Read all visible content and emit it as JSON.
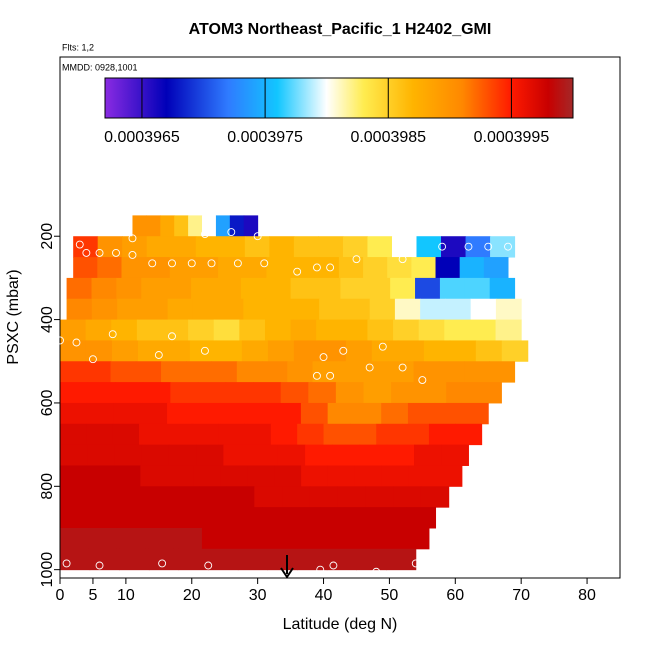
{
  "chart_data": {
    "type": "heatmap",
    "title": "ATOM3 Northeast_Pacific_1 H2402_GMI",
    "flights_label": "Flts: 1,2",
    "dates_label": "MMDD: 0928,1001",
    "xlabel": "Latitude (deg N)",
    "ylabel": "PSXC (mbar)",
    "xlim": [
      0,
      85
    ],
    "xticks": [
      0,
      5,
      10,
      20,
      30,
      40,
      50,
      60,
      70,
      80
    ],
    "ylim": [
      1020,
      -230
    ],
    "yticks": [
      200,
      400,
      600,
      800,
      1000
    ],
    "clim": [
      0.0003962,
      0.0004
    ],
    "cticks": [
      0.0003965,
      0.0003975,
      0.0003985,
      0.0003995
    ],
    "colorscale": [
      [
        0.0003962,
        "#8a2be2"
      ],
      [
        0.0003967,
        "#0000b8"
      ],
      [
        0.0003972,
        "#2f7bff"
      ],
      [
        0.0003976,
        "#12c6ff"
      ],
      [
        0.000398,
        "#ffffff"
      ],
      [
        0.0003983,
        "#ffec50"
      ],
      [
        0.0003987,
        "#ffb400"
      ],
      [
        0.0003991,
        "#ff8800"
      ],
      [
        0.0003995,
        "#ff1a00"
      ],
      [
        0.0003998,
        "#c80000"
      ],
      [
        0.0004,
        "#a42828"
      ]
    ],
    "rows": [
      {
        "pressure": 175,
        "lat_range": [
          11,
          30
        ],
        "values": [
          0.000399,
          0.000399,
          0.0003988,
          0.0003986,
          0.0003982,
          0.000398,
          0.0003974,
          0.0003968,
          0.0003966
        ]
      },
      {
        "pressure": 225,
        "lat_range": [
          2,
          69
        ],
        "values": [
          0.0003994,
          0.000399,
          0.0003989,
          0.0003988,
          0.0003988,
          0.0003987,
          0.0003987,
          0.0003986,
          0.0003987,
          0.0003986,
          0.0003986,
          0.0003985,
          0.0003983,
          0.000398,
          0.0003976,
          0.0003966,
          0.0003972,
          0.0003978
        ]
      },
      {
        "pressure": 275,
        "lat_range": [
          2,
          68
        ],
        "values": [
          0.0003993,
          0.0003992,
          0.000399,
          0.000399,
          0.0003989,
          0.0003989,
          0.0003988,
          0.0003988,
          0.0003987,
          0.0003987,
          0.0003987,
          0.0003986,
          0.0003985,
          0.0003984,
          0.0003983,
          0.0003967,
          0.0003975,
          0.0003974
        ]
      },
      {
        "pressure": 325,
        "lat_range": [
          1,
          69
        ],
        "values": [
          0.0003992,
          0.0003991,
          0.000399,
          0.0003989,
          0.0003989,
          0.0003988,
          0.0003988,
          0.0003987,
          0.0003987,
          0.0003986,
          0.0003986,
          0.0003985,
          0.0003985,
          0.0003983,
          0.000397,
          0.0003977,
          0.0003977,
          0.0003975
        ]
      },
      {
        "pressure": 375,
        "lat_range": [
          1,
          70
        ],
        "values": [
          0.0003991,
          0.000399,
          0.0003989,
          0.0003989,
          0.0003988,
          0.0003988,
          0.0003988,
          0.0003987,
          0.0003987,
          0.0003987,
          0.0003986,
          0.0003986,
          0.0003985,
          0.0003981,
          0.0003979,
          0.0003979,
          0.000398,
          0.0003981
        ]
      },
      {
        "pressure": 425,
        "lat_range": [
          0,
          70
        ],
        "values": [
          0.0003989,
          0.0003988,
          0.0003987,
          0.0003986,
          0.0003986,
          0.0003985,
          0.0003984,
          0.0003986,
          0.0003987,
          0.0003988,
          0.0003987,
          0.0003987,
          0.0003986,
          0.0003985,
          0.0003984,
          0.0003983,
          0.0003983,
          0.0003982
        ]
      },
      {
        "pressure": 475,
        "lat_range": [
          0,
          71
        ],
        "values": [
          0.000399,
          0.000399,
          0.0003989,
          0.0003988,
          0.0003988,
          0.0003987,
          0.0003987,
          0.0003988,
          0.0003989,
          0.000399,
          0.000399,
          0.0003989,
          0.0003988,
          0.0003988,
          0.0003987,
          0.0003987,
          0.0003986,
          0.0003985
        ]
      },
      {
        "pressure": 525,
        "lat_range": [
          0,
          69
        ],
        "values": [
          0.0003994,
          0.0003994,
          0.0003993,
          0.0003993,
          0.0003992,
          0.0003992,
          0.0003992,
          0.0003991,
          0.0003991,
          0.000399,
          0.0003989,
          0.0003989,
          0.0003989,
          0.0003989,
          0.000399,
          0.000399,
          0.000399,
          0.000399
        ]
      },
      {
        "pressure": 575,
        "lat_range": [
          0,
          67
        ],
        "values": [
          0.0003995,
          0.0003995,
          0.0003995,
          0.0003995,
          0.0003994,
          0.0003994,
          0.0003994,
          0.0003994,
          0.0003993,
          0.0003992,
          0.000399,
          0.0003989,
          0.000399,
          0.000399,
          0.0003991,
          0.0003991
        ]
      },
      {
        "pressure": 625,
        "lat_range": [
          0,
          65
        ],
        "values": [
          0.0003996,
          0.0003996,
          0.0003996,
          0.0003996,
          0.0003995,
          0.0003995,
          0.0003995,
          0.0003995,
          0.0003995,
          0.0003993,
          0.0003991,
          0.0003991,
          0.0003992,
          0.0003993,
          0.0003993,
          0.0003993
        ]
      },
      {
        "pressure": 675,
        "lat_range": [
          0,
          64
        ],
        "values": [
          0.0003997,
          0.0003997,
          0.0003997,
          0.0003996,
          0.0003996,
          0.0003996,
          0.0003996,
          0.0003996,
          0.0003995,
          0.0003994,
          0.0003993,
          0.0003993,
          0.0003994,
          0.0003994,
          0.0003995,
          0.0003995
        ]
      },
      {
        "pressure": 725,
        "lat_range": [
          0,
          62
        ],
        "values": [
          0.0003997,
          0.0003997,
          0.0003997,
          0.0003997,
          0.0003997,
          0.0003997,
          0.0003996,
          0.0003996,
          0.0003996,
          0.0003995,
          0.0003995,
          0.0003995,
          0.0003995,
          0.0003996,
          0.0003996
        ]
      },
      {
        "pressure": 775,
        "lat_range": [
          0,
          61
        ],
        "values": [
          0.0003998,
          0.0003998,
          0.0003998,
          0.0003997,
          0.0003997,
          0.0003997,
          0.0003997,
          0.0003997,
          0.0003997,
          0.0003996,
          0.0003996,
          0.0003996,
          0.0003996,
          0.0003996,
          0.0003996
        ]
      },
      {
        "pressure": 825,
        "lat_range": [
          0,
          59
        ],
        "values": [
          0.0003998,
          0.0003998,
          0.0003998,
          0.0003998,
          0.0003998,
          0.0003998,
          0.0003998,
          0.0003997,
          0.0003997,
          0.0003997,
          0.0003997,
          0.0003997,
          0.0003997,
          0.0003997
        ]
      },
      {
        "pressure": 875,
        "lat_range": [
          0,
          57
        ],
        "values": [
          0.0003998,
          0.0003998,
          0.0003998,
          0.0003998,
          0.0003998,
          0.0003998,
          0.0003998,
          0.0003998,
          0.0003998,
          0.0003998,
          0.0003998,
          0.0003998,
          0.0003998
        ]
      },
      {
        "pressure": 925,
        "lat_range": [
          0,
          56
        ],
        "values": [
          0.0003999,
          0.0003999,
          0.0003999,
          0.0003999,
          0.0003999,
          0.0003998,
          0.0003998,
          0.0003998,
          0.0003998,
          0.0003998,
          0.0003998,
          0.0003998,
          0.0003998
        ]
      },
      {
        "pressure": 975,
        "lat_range": [
          0,
          54
        ],
        "values": [
          0.0003999,
          0.0003999,
          0.0003999,
          0.0003999,
          0.0003999,
          0.0003999,
          0.0003999,
          0.0003999,
          0.0003999,
          0.0003999,
          0.0003999,
          0.0003999
        ]
      }
    ],
    "points": {
      "lat": [
        11,
        22,
        26,
        30,
        3,
        4,
        6,
        8.5,
        11,
        14,
        17,
        20,
        23,
        27,
        31,
        36,
        39,
        41,
        45,
        52,
        58,
        62,
        65,
        68,
        0,
        2.5,
        5,
        8,
        15,
        17,
        22,
        40,
        43,
        49,
        52,
        39,
        41,
        47,
        55,
        1,
        6,
        15.5,
        22.5,
        39.5,
        41.5,
        48,
        54
      ],
      "pressure": [
        205,
        195,
        190,
        200,
        220,
        240,
        240,
        240,
        245,
        265,
        265,
        265,
        265,
        265,
        265,
        285,
        275,
        275,
        255,
        255,
        225,
        225,
        225,
        225,
        450,
        455,
        495,
        435,
        485,
        440,
        475,
        490,
        475,
        465,
        515,
        535,
        535,
        515,
        545,
        985,
        990,
        985,
        990,
        1000,
        990,
        1005,
        985
      ]
    }
  }
}
